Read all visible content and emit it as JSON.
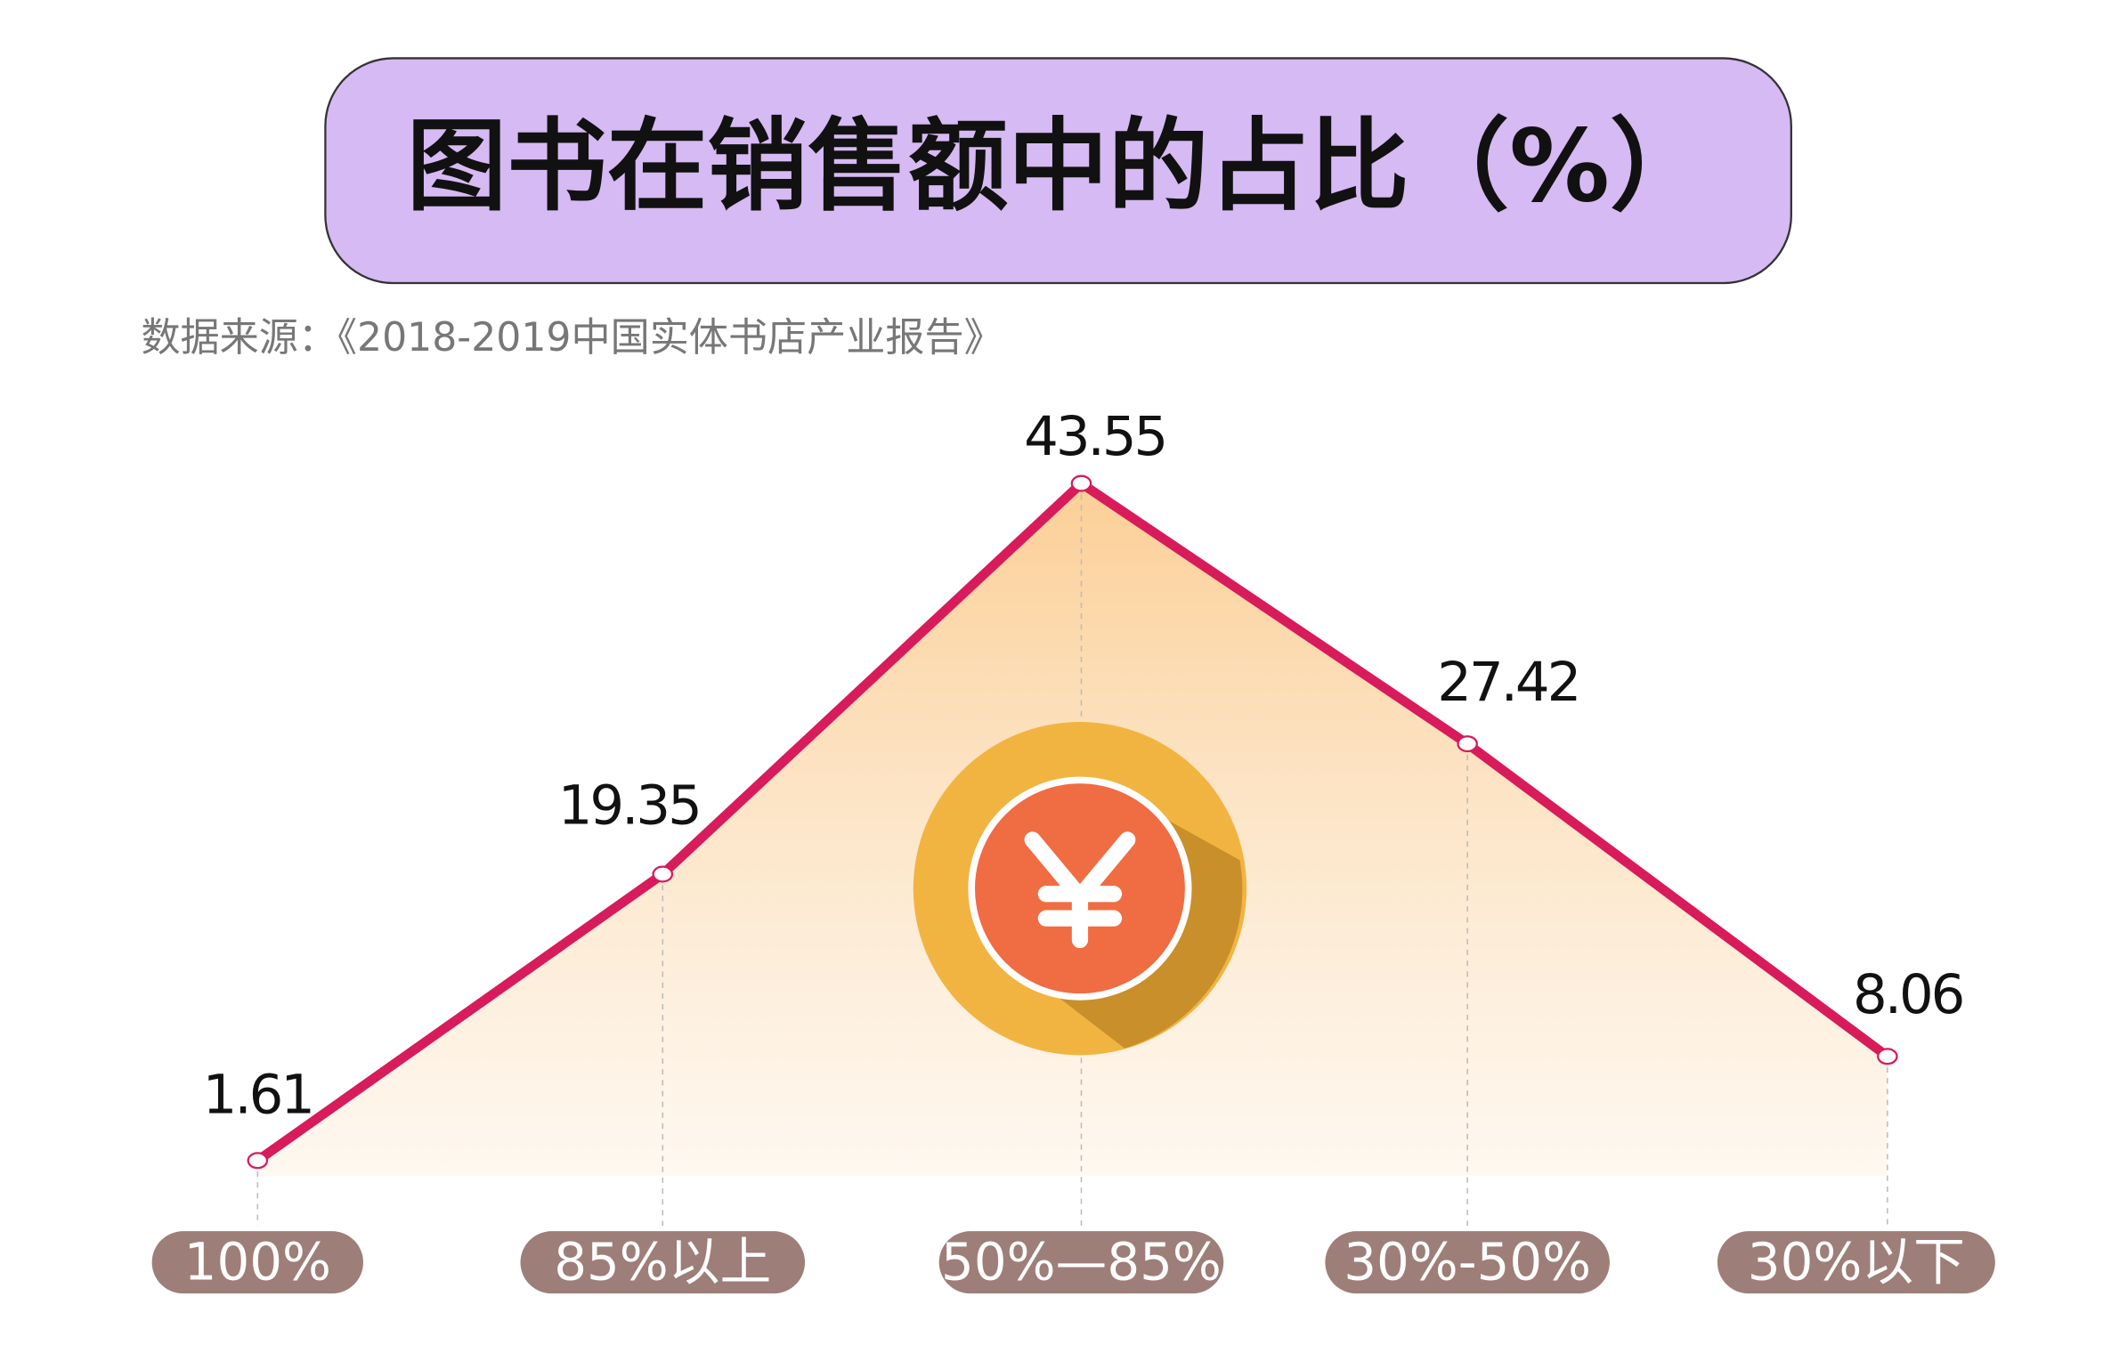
{
  "chart_data": {
    "type": "line",
    "title": "图书在销售额中的占比（%）",
    "subtitle": "数据来源：《2018-2019中国实体书店产业报告》",
    "categories": [
      "100%",
      "85%以上",
      "50%—85%",
      "30%-50%",
      "30%以下"
    ],
    "values": [
      1.61,
      19.35,
      43.55,
      27.42,
      8.06
    ],
    "color": "#d81b5a"
  }
}
